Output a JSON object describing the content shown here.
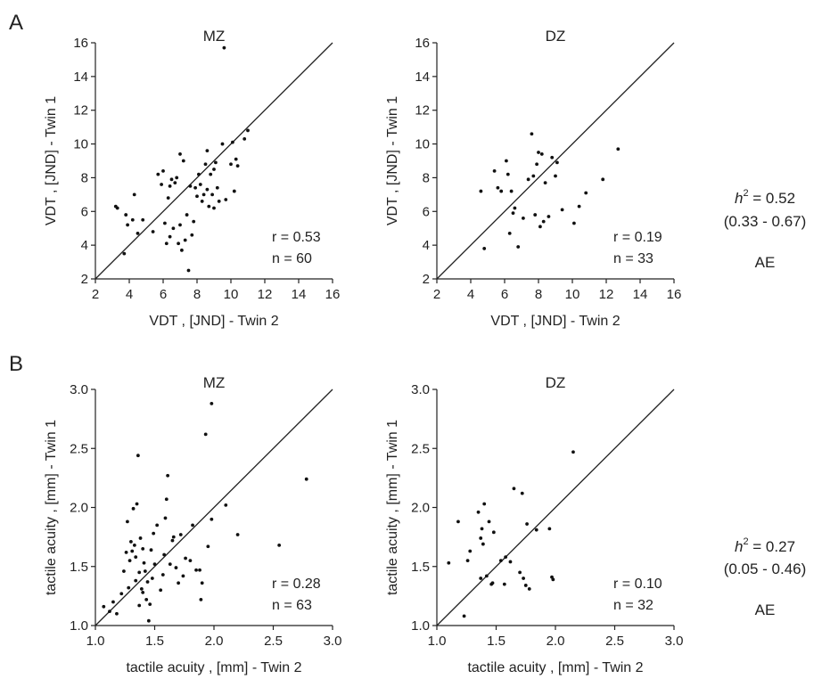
{
  "rows": [
    {
      "letter": "A",
      "heritability": {
        "symbol": "h",
        "exponent": "2",
        "value": "= 0.52",
        "ci": "(0.33 - 0.67)",
        "model": "AE"
      },
      "panels": [
        {
          "title": "MZ",
          "stats": {
            "r": "r = 0.53",
            "n": "n = 60"
          },
          "chart_data": {
            "type": "scatter",
            "xlabel": "VDT , [JND] - Twin 2",
            "ylabel": "VDT , [JND] - Twin 1",
            "xlim": [
              2,
              16
            ],
            "ylim": [
              2,
              16
            ],
            "xticks": [
              2,
              4,
              6,
              8,
              10,
              12,
              14,
              16
            ],
            "yticks": [
              2,
              4,
              6,
              8,
              10,
              12,
              14,
              16
            ],
            "identity_line": true,
            "points": [
              [
                3.2,
                6.3
              ],
              [
                3.3,
                6.2
              ],
              [
                3.7,
                3.5
              ],
              [
                3.8,
                5.8
              ],
              [
                3.9,
                5.2
              ],
              [
                4.2,
                5.5
              ],
              [
                4.3,
                7.0
              ],
              [
                4.5,
                4.7
              ],
              [
                4.8,
                5.5
              ],
              [
                5.4,
                4.8
              ],
              [
                5.7,
                8.2
              ],
              [
                5.9,
                7.6
              ],
              [
                6.0,
                8.4
              ],
              [
                6.1,
                5.3
              ],
              [
                6.2,
                4.1
              ],
              [
                6.3,
                6.8
              ],
              [
                6.4,
                7.5
              ],
              [
                6.4,
                4.5
              ],
              [
                6.5,
                7.9
              ],
              [
                6.6,
                5.0
              ],
              [
                6.7,
                7.7
              ],
              [
                6.8,
                8.0
              ],
              [
                6.9,
                4.1
              ],
              [
                7.0,
                5.2
              ],
              [
                7.0,
                9.4
              ],
              [
                7.1,
                3.7
              ],
              [
                7.2,
                9.0
              ],
              [
                7.3,
                4.3
              ],
              [
                7.4,
                5.8
              ],
              [
                7.5,
                2.5
              ],
              [
                7.6,
                7.5
              ],
              [
                7.7,
                4.6
              ],
              [
                7.8,
                5.4
              ],
              [
                7.9,
                7.4
              ],
              [
                8.0,
                6.9
              ],
              [
                8.1,
                8.2
              ],
              [
                8.2,
                7.6
              ],
              [
                8.3,
                6.6
              ],
              [
                8.4,
                7.0
              ],
              [
                8.5,
                8.8
              ],
              [
                8.6,
                9.6
              ],
              [
                8.6,
                7.3
              ],
              [
                8.7,
                6.3
              ],
              [
                8.8,
                8.2
              ],
              [
                8.9,
                7.0
              ],
              [
                9.0,
                8.5
              ],
              [
                9.0,
                6.2
              ],
              [
                9.1,
                8.9
              ],
              [
                9.2,
                7.4
              ],
              [
                9.3,
                6.6
              ],
              [
                9.5,
                10.0
              ],
              [
                9.6,
                15.7
              ],
              [
                9.7,
                6.7
              ],
              [
                10.0,
                8.8
              ],
              [
                10.1,
                10.1
              ],
              [
                10.2,
                7.2
              ],
              [
                10.3,
                9.1
              ],
              [
                10.4,
                8.7
              ],
              [
                10.8,
                10.3
              ],
              [
                11.0,
                10.8
              ]
            ]
          }
        },
        {
          "title": "DZ",
          "stats": {
            "r": "r = 0.19",
            "n": "n = 33"
          },
          "chart_data": {
            "type": "scatter",
            "xlabel": "VDT , [JND] - Twin 2",
            "ylabel": "VDT , [JND] - Twin 1",
            "xlim": [
              2,
              16
            ],
            "ylim": [
              2,
              16
            ],
            "xticks": [
              2,
              4,
              6,
              8,
              10,
              12,
              14,
              16
            ],
            "yticks": [
              2,
              4,
              6,
              8,
              10,
              12,
              14,
              16
            ],
            "identity_line": true,
            "points": [
              [
                4.6,
                7.2
              ],
              [
                4.8,
                3.8
              ],
              [
                5.4,
                8.4
              ],
              [
                5.6,
                7.4
              ],
              [
                5.8,
                7.2
              ],
              [
                6.1,
                9.0
              ],
              [
                6.2,
                8.2
              ],
              [
                6.3,
                4.7
              ],
              [
                6.4,
                7.2
              ],
              [
                6.5,
                5.9
              ],
              [
                6.6,
                6.2
              ],
              [
                6.8,
                3.9
              ],
              [
                7.1,
                5.6
              ],
              [
                7.4,
                7.9
              ],
              [
                7.6,
                10.6
              ],
              [
                7.7,
                8.1
              ],
              [
                7.8,
                5.8
              ],
              [
                7.9,
                8.8
              ],
              [
                8.0,
                9.5
              ],
              [
                8.1,
                5.1
              ],
              [
                8.2,
                9.4
              ],
              [
                8.3,
                5.4
              ],
              [
                8.4,
                7.7
              ],
              [
                8.6,
                5.7
              ],
              [
                8.8,
                9.2
              ],
              [
                9.0,
                8.1
              ],
              [
                9.1,
                8.9
              ],
              [
                9.4,
                6.1
              ],
              [
                10.1,
                5.3
              ],
              [
                10.4,
                6.3
              ],
              [
                10.8,
                7.1
              ],
              [
                11.8,
                7.9
              ],
              [
                12.7,
                9.7
              ]
            ]
          }
        }
      ]
    },
    {
      "letter": "B",
      "heritability": {
        "symbol": "h",
        "exponent": "2",
        "value": "= 0.27",
        "ci": "(0.05 - 0.46)",
        "model": "AE"
      },
      "panels": [
        {
          "title": "MZ",
          "stats": {
            "r": "r = 0.28",
            "n": "n = 63"
          },
          "chart_data": {
            "type": "scatter",
            "xlabel": "tactile acuity , [mm] - Twin 2",
            "ylabel": "tactile acuity , [mm] - Twin 1",
            "xlim": [
              1.0,
              3.0
            ],
            "ylim": [
              1.0,
              3.0
            ],
            "xticks": [
              "1.0",
              "1.5",
              "2.0",
              "2.5",
              "3.0"
            ],
            "yticks": [
              "1.0",
              "1.5",
              "2.0",
              "2.5",
              "3.0"
            ],
            "identity_line": true,
            "points": [
              [
                1.07,
                1.16
              ],
              [
                1.12,
                1.12
              ],
              [
                1.15,
                1.2
              ],
              [
                1.18,
                1.1
              ],
              [
                1.22,
                1.27
              ],
              [
                1.24,
                1.46
              ],
              [
                1.26,
                1.62
              ],
              [
                1.27,
                1.88
              ],
              [
                1.28,
                1.32
              ],
              [
                1.29,
                1.55
              ],
              [
                1.3,
                1.71
              ],
              [
                1.31,
                1.63
              ],
              [
                1.32,
                1.99
              ],
              [
                1.33,
                1.68
              ],
              [
                1.34,
                1.38
              ],
              [
                1.34,
                1.58
              ],
              [
                1.35,
                2.03
              ],
              [
                1.36,
                2.44
              ],
              [
                1.37,
                1.45
              ],
              [
                1.37,
                1.17
              ],
              [
                1.38,
                1.74
              ],
              [
                1.39,
                1.31
              ],
              [
                1.4,
                1.65
              ],
              [
                1.4,
                1.28
              ],
              [
                1.41,
                1.53
              ],
              [
                1.42,
                1.46
              ],
              [
                1.43,
                1.22
              ],
              [
                1.44,
                1.37
              ],
              [
                1.45,
                1.04
              ],
              [
                1.46,
                1.18
              ],
              [
                1.47,
                1.64
              ],
              [
                1.48,
                1.4
              ],
              [
                1.49,
                1.78
              ],
              [
                1.5,
                1.52
              ],
              [
                1.52,
                1.85
              ],
              [
                1.55,
                1.3
              ],
              [
                1.57,
                1.43
              ],
              [
                1.58,
                1.6
              ],
              [
                1.59,
                1.91
              ],
              [
                1.6,
                2.07
              ],
              [
                1.61,
                2.27
              ],
              [
                1.63,
                1.52
              ],
              [
                1.65,
                1.72
              ],
              [
                1.66,
                1.75
              ],
              [
                1.68,
                1.49
              ],
              [
                1.7,
                1.36
              ],
              [
                1.72,
                1.77
              ],
              [
                1.74,
                1.42
              ],
              [
                1.76,
                1.57
              ],
              [
                1.8,
                1.55
              ],
              [
                1.82,
                1.85
              ],
              [
                1.85,
                1.47
              ],
              [
                1.88,
                1.47
              ],
              [
                1.89,
                1.22
              ],
              [
                1.9,
                1.36
              ],
              [
                1.93,
                2.62
              ],
              [
                1.95,
                1.67
              ],
              [
                1.98,
                2.88
              ],
              [
                1.98,
                1.9
              ],
              [
                2.1,
                2.02
              ],
              [
                2.2,
                1.77
              ],
              [
                2.55,
                1.68
              ],
              [
                2.78,
                2.24
              ]
            ]
          }
        },
        {
          "title": "DZ",
          "stats": {
            "r": "r = 0.10",
            "n": "n = 32"
          },
          "chart_data": {
            "type": "scatter",
            "xlabel": "tactile acuity , [mm] - Twin 2",
            "ylabel": "tactile acuity , [mm] - Twin 1",
            "xlim": [
              1.0,
              3.0
            ],
            "ylim": [
              1.0,
              3.0
            ],
            "xticks": [
              "1.0",
              "1.5",
              "2.0",
              "2.5",
              "3.0"
            ],
            "yticks": [
              "1.0",
              "1.5",
              "2.0",
              "2.5",
              "3.0"
            ],
            "identity_line": true,
            "points": [
              [
                1.1,
                1.53
              ],
              [
                1.18,
                1.88
              ],
              [
                1.23,
                1.08
              ],
              [
                1.26,
                1.55
              ],
              [
                1.28,
                1.63
              ],
              [
                1.35,
                1.96
              ],
              [
                1.37,
                1.74
              ],
              [
                1.37,
                1.4
              ],
              [
                1.38,
                1.82
              ],
              [
                1.39,
                1.69
              ],
              [
                1.4,
                2.03
              ],
              [
                1.42,
                1.42
              ],
              [
                1.44,
                1.88
              ],
              [
                1.46,
                1.35
              ],
              [
                1.47,
                1.36
              ],
              [
                1.48,
                1.79
              ],
              [
                1.54,
                1.55
              ],
              [
                1.57,
                1.35
              ],
              [
                1.58,
                1.58
              ],
              [
                1.62,
                1.54
              ],
              [
                1.65,
                2.16
              ],
              [
                1.7,
                1.45
              ],
              [
                1.72,
                2.12
              ],
              [
                1.73,
                1.4
              ],
              [
                1.75,
                1.34
              ],
              [
                1.76,
                1.86
              ],
              [
                1.78,
                1.31
              ],
              [
                1.84,
                1.81
              ],
              [
                1.95,
                1.82
              ],
              [
                1.97,
                1.41
              ],
              [
                1.98,
                1.39
              ],
              [
                2.15,
                2.47
              ]
            ]
          }
        }
      ]
    }
  ]
}
